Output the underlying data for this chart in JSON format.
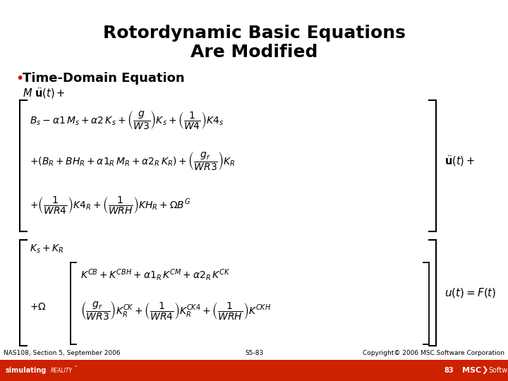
{
  "title_line1": "Rotordynamic Basic Equations",
  "title_line2": "Are Modified",
  "bullet_label": "Time-Domain Equation",
  "bg_color": "#ffffff",
  "title_color": "#000000",
  "bullet_color": "#cc0000",
  "text_color": "#000000",
  "footer_left": "NAS108, Section 5, September 2006",
  "footer_center": "S5-83",
  "footer_right": "Copyright© 2006 MSC.Software Corporation",
  "footer_bar_color": "#cc2200",
  "footer_text_color": "#ffffff",
  "page_number": "83",
  "eq1": "$B_s - \\alpha1\\, M_s + \\alpha2\\, K_s + \\left(\\dfrac{g}{W3}\\right)K_s + \\left(\\dfrac{1}{W4}\\right)K4_s$",
  "eq2": "$+(B_R + BH_R + \\alpha1_R\\, M_R + \\alpha2_R\\, K_R) + \\left(\\dfrac{g_r}{WR3}\\right)K_R$",
  "eq3": "$+\\left(\\dfrac{1}{WR4}\\right)K4_R + \\left(\\dfrac{1}{WRH}\\right)KH_R + \\Omega B^G$",
  "eq_udot": "$\\ddot{\\mathbf{u}}(t) +$",
  "eq_Muudot": "$M\\ \\ddot{\\mathbf{u}}(t) +$",
  "eq_ks_kr": "$K_s + K_R$",
  "eq4": "$K^{CB} + K^{CBH} + \\alpha1_R\\, K^{CM} + \\alpha2_R\\, K^{CK}$",
  "eq5a": "$+\\Omega$",
  "eq5b": "$\\left(\\dfrac{g_r}{WR3}\\right)K_R^{CK} + \\left(\\dfrac{1}{WR4}\\right)K_R^{CK4} + \\left(\\dfrac{1}{WRH}\\right)K^{CKH}$",
  "eq_uft": "$u(t) = F(t)$"
}
